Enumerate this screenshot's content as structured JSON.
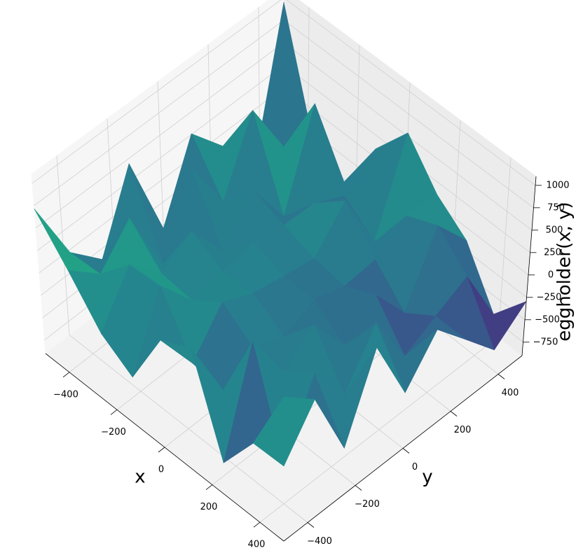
{
  "chart_data": {
    "type": "surface",
    "colormap": "viridis",
    "x_label": "x",
    "y_label": "y",
    "z_label": "eggholder(x, y)",
    "x": [
      -500,
      -375,
      -250,
      -125,
      0,
      125,
      250,
      375,
      500
    ],
    "y": [
      -500,
      -375,
      -250,
      -125,
      0,
      125,
      250,
      375,
      500
    ],
    "z": [
      [
        715,
        289,
        -153,
        -379,
        296,
        469,
        -550,
        -69,
        709
      ],
      [
        -30,
        -11,
        354,
        383,
        -221,
        -262,
        548,
        -583,
        423
      ],
      [
        -367,
        356,
        -1,
        -41,
        202,
        -49,
        -50,
        188,
        -381
      ],
      [
        443,
        -418,
        209,
        17,
        44,
        -180,
        211,
        -312,
        485
      ],
      [
        -540,
        403,
        -276,
        99,
        -25,
        -29,
        -274,
        235,
        -280
      ],
      [
        259,
        -246,
        155,
        23,
        -90,
        -134,
        32,
        -392,
        166
      ],
      [
        -139,
        522,
        -401,
        10,
        297,
        -98,
        -431,
        -203,
        -204
      ],
      [
        -654,
        -145,
        600,
        -169,
        -419,
        133,
        285,
        -22,
        -579
      ],
      [
        950,
        -386,
        -532,
        100,
        539,
        111,
        -138,
        -700,
        -295
      ]
    ],
    "xlim": [
      -500,
      500
    ],
    "ylim": [
      -500,
      500
    ],
    "zlim": [
      -900,
      1100
    ],
    "xticks": [
      {
        "value": -400,
        "label": "−400"
      },
      {
        "value": -200,
        "label": "−200"
      },
      0,
      200,
      400
    ],
    "yticks": [
      {
        "value": -400,
        "label": "−400"
      },
      {
        "value": -200,
        "label": "−200"
      },
      0,
      200,
      400
    ],
    "zticks": [
      {
        "value": -750,
        "label": "−750"
      },
      {
        "value": -500,
        "label": "−500"
      },
      {
        "value": -250,
        "label": "−250"
      },
      0,
      250,
      500,
      750,
      1000
    ],
    "grid": true
  }
}
